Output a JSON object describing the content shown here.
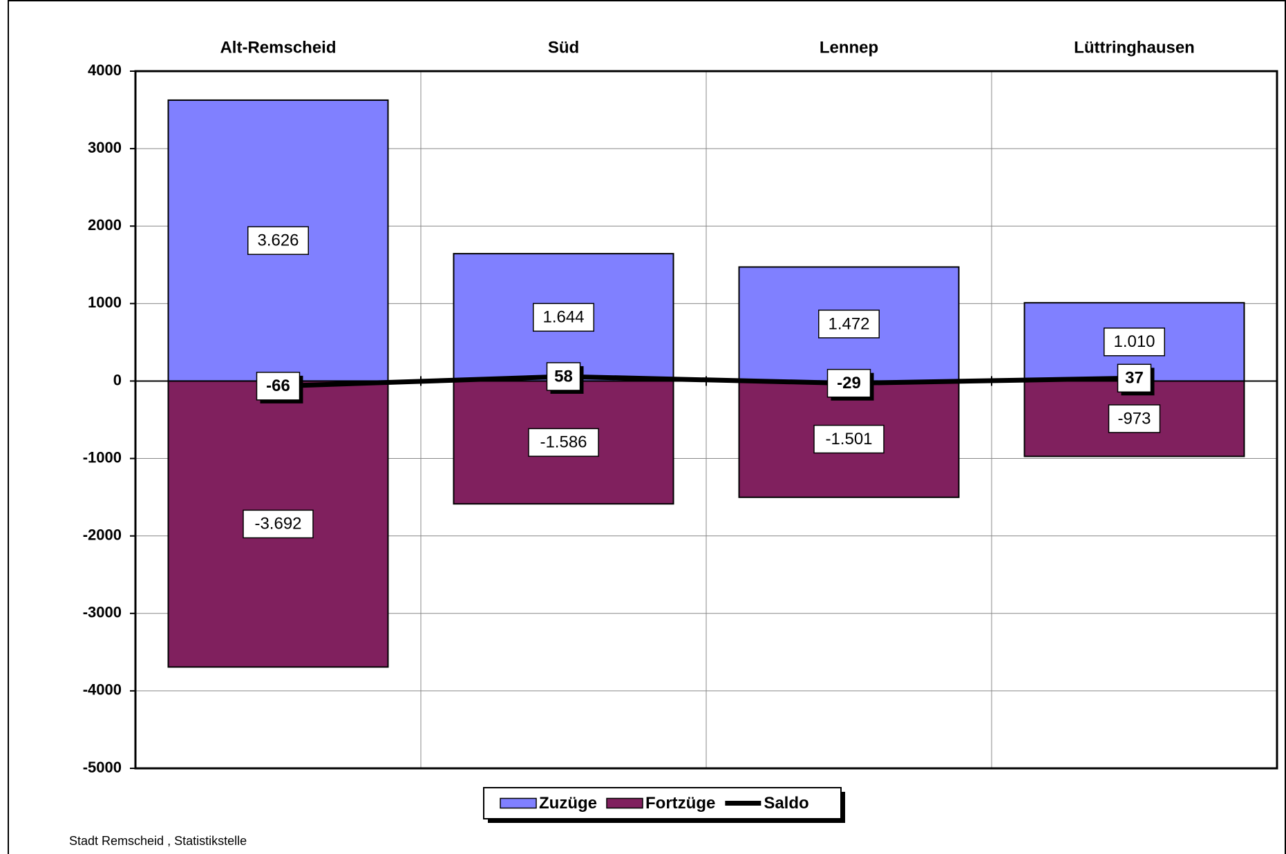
{
  "chart_data": {
    "type": "bar",
    "categories": [
      "Alt-Remscheid",
      "Süd",
      "Lennep",
      "Lüttringhausen"
    ],
    "series": [
      {
        "name": "Zuzüge",
        "color": "#8080ff",
        "values": [
          3626,
          1644,
          1472,
          1010
        ],
        "value_labels": [
          "3.626",
          "1.644",
          "1.472",
          "1.010"
        ]
      },
      {
        "name": "Fortzüge",
        "color": "#80205e",
        "values": [
          -3692,
          -1586,
          -1501,
          -973
        ],
        "value_labels": [
          "-3.692",
          "-1.586",
          "-1.501",
          "-973"
        ]
      },
      {
        "name": "Saldo",
        "type": "line",
        "color": "#000000",
        "values": [
          -66,
          58,
          -29,
          37
        ]
      }
    ],
    "ylim": [
      -5000,
      4000
    ],
    "yticks": [
      4000,
      3000,
      2000,
      1000,
      0,
      -1000,
      -2000,
      -3000,
      -4000,
      -5000
    ],
    "grid": true,
    "legend": "bottom",
    "footnote": "Stadt Remscheid , Statistikstelle"
  }
}
